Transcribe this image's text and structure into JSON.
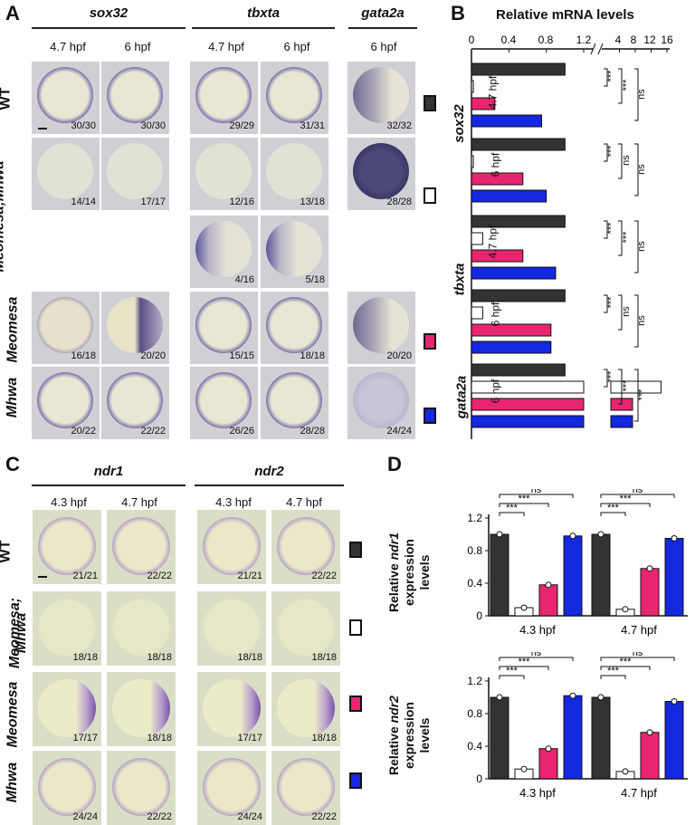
{
  "panel_a": {
    "label": "A",
    "genes": [
      "sox32",
      "tbxta",
      "gata2a"
    ],
    "times": {
      "sox32": [
        "4.7 hpf",
        "6 hpf"
      ],
      "tbxta": [
        "4.7  hpf",
        "6 hpf"
      ],
      "gata2a": [
        "6 hpf"
      ]
    },
    "rows": [
      "WT",
      "Meomesa;Mhwa",
      "Meomesa",
      "Mhwa"
    ],
    "counts": {
      "wt": [
        "30/30",
        "30/30",
        "29/29",
        "31/31",
        "32/32"
      ],
      "double": [
        "14/14",
        "17/17",
        "12/16",
        "13/18",
        "28/28"
      ],
      "double_extra": [
        "4/16",
        "5/18"
      ],
      "meomesa": [
        "16/18",
        "20/20",
        "15/15",
        "18/18",
        "20/20"
      ],
      "mhwa": [
        "20/22",
        "22/22",
        "26/26",
        "28/28",
        "24/24"
      ]
    }
  },
  "panel_b": {
    "label": "B",
    "title": "Relative mRNA levels",
    "axis_ticks_left": [
      "0",
      "0.4",
      "0.8",
      "1.2"
    ],
    "axis_ticks_right": [
      "4",
      "8",
      "12",
      "16"
    ],
    "genes": [
      "sox32",
      "tbxta",
      "gata2a"
    ],
    "sublabels": [
      "4.7 hpf",
      "6 hpf",
      "4.7 hpf",
      "6 hpf",
      "6 hpf"
    ],
    "sig": {
      "sox32_47": [
        "***",
        "***",
        "ns"
      ],
      "sox32_6": [
        "***",
        "ns",
        "ns"
      ],
      "tbxta_47": [
        "***",
        "***",
        "ns"
      ],
      "tbxta_6": [
        "***",
        "ns",
        "ns"
      ],
      "gata2a_6": [
        "***",
        "***",
        "***",
        "*"
      ]
    }
  },
  "panel_c": {
    "label": "C",
    "genes": [
      "ndr1",
      "ndr2"
    ],
    "times": [
      "4.3 hpf",
      "4.7 hpf",
      "4.3  hpf",
      "4.7 hpf"
    ],
    "rows": [
      "WT",
      "Meomesa;",
      "Mhwa",
      "Meomesa",
      "Mhwa"
    ],
    "counts": {
      "wt": [
        "21/21",
        "22/22",
        "21/21",
        "22/22"
      ],
      "double": [
        "18/18",
        "18/18",
        "18/18",
        "18/18"
      ],
      "meomesa": [
        "17/17",
        "18/18",
        "17/17",
        "18/18"
      ],
      "mhwa": [
        "24/24",
        "22/22",
        "24/24",
        "22/22"
      ]
    }
  },
  "panel_d": {
    "label": "D",
    "ylabel1_line1": "Relative",
    "ylabel1_gene": "ndr1",
    "ylabel1_line2": "expression levels",
    "ylabel2_line1": "Relative",
    "ylabel2_gene": "ndr2",
    "ylabel2_line2": "expression levels",
    "yticks": [
      "0",
      "0.4",
      "0.8",
      "1.2"
    ],
    "groups": [
      "4.3 hpf",
      "4.7 hpf"
    ],
    "sig": [
      "***",
      "***",
      "ns"
    ]
  },
  "colors": {
    "wt": "#333333",
    "double": "#ffffff",
    "meomesa": "#e8266f",
    "mhwa": "#1428e0"
  },
  "chart_data": [
    {
      "type": "bar",
      "title": "Relative mRNA levels",
      "orientation": "horizontal",
      "categories": [
        "sox32 4.7 hpf",
        "sox32 6 hpf",
        "tbxta 4.7 hpf",
        "tbxta 6 hpf",
        "gata2a 6 hpf"
      ],
      "series": [
        {
          "values": [
            1.0,
            1.0,
            1.0,
            1.0,
            1.0
          ]
        },
        {
          "values": [
            0.02,
            0.02,
            0.12,
            0.12,
            14.5
          ]
        },
        {
          "values": [
            0.25,
            0.55,
            0.55,
            0.85,
            0.2
          ]
        },
        {
          "values": [
            0.75,
            0.8,
            0.9,
            0.85,
            0.5
          ]
        }
      ],
      "xlim": [
        0,
        16
      ]
    },
    {
      "type": "bar",
      "categories": [
        "4.3 hpf",
        "4.7 hpf"
      ],
      "series": [
        {
          "values": [
            1.0,
            1.0
          ]
        },
        {
          "values": [
            0.1,
            0.08
          ]
        },
        {
          "values": [
            0.38,
            0.58
          ]
        },
        {
          "values": [
            0.98,
            0.95
          ]
        }
      ],
      "ylabel": "Relative ndr1 expression levels",
      "ylim": [
        0,
        1.2
      ]
    },
    {
      "type": "bar",
      "categories": [
        "4.3 hpf",
        "4.7 hpf"
      ],
      "series": [
        {
          "values": [
            1.0,
            1.0
          ]
        },
        {
          "values": [
            0.12,
            0.09
          ]
        },
        {
          "values": [
            0.37,
            0.57
          ]
        },
        {
          "values": [
            1.02,
            0.95
          ]
        }
      ],
      "ylabel": "Relative ndr2 expression levels",
      "ylim": [
        0,
        1.2
      ]
    }
  ]
}
